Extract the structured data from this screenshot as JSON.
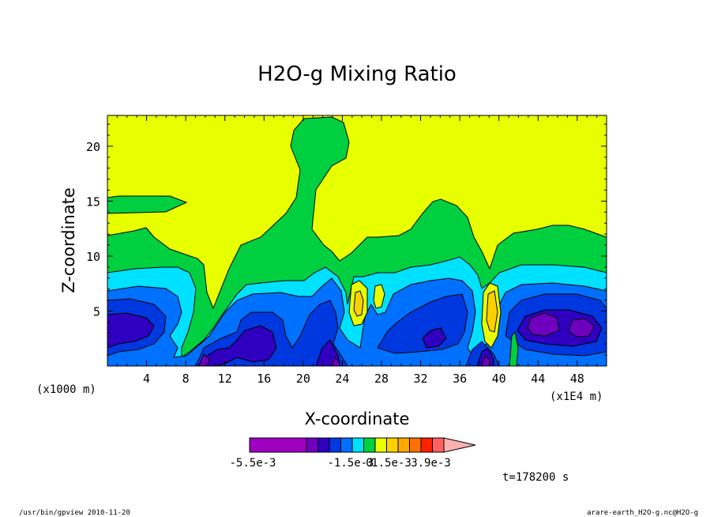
{
  "chart_data": {
    "type": "contour",
    "title": "H2O-g Mixing Ratio",
    "xlabel": "X-coordinate",
    "ylabel": "Z-coordinate",
    "x_units_label": "(x1000 m)",
    "x_scale_label": "(x1E4 m)",
    "x_ticks": [
      4,
      8,
      12,
      16,
      20,
      24,
      28,
      32,
      36,
      40,
      44,
      48
    ],
    "y_ticks": [
      5,
      10,
      15,
      20
    ],
    "xlim": [
      0,
      51
    ],
    "ylim": [
      0,
      22.8
    ],
    "colorbar": {
      "colors": [
        "#a000c0",
        "#7000c0",
        "#3000c0",
        "#0038e0",
        "#0070ff",
        "#00e0ff",
        "#00d040",
        "#e8ff00",
        "#ffd000",
        "#ffa800",
        "#ff7000",
        "#ff2000",
        "#ff6060",
        "#ffb0b0"
      ],
      "tick_labels": [
        "-5.5e-3",
        "-1.5e-3",
        "0",
        "1.5e-3",
        "3.9e-3"
      ]
    },
    "time_label": "t=178200 s",
    "footer_left": "/usr/bin/gpview  2010-11-20",
    "footer_right": "arare-earth_H2O-g.nc@H2O-g"
  }
}
